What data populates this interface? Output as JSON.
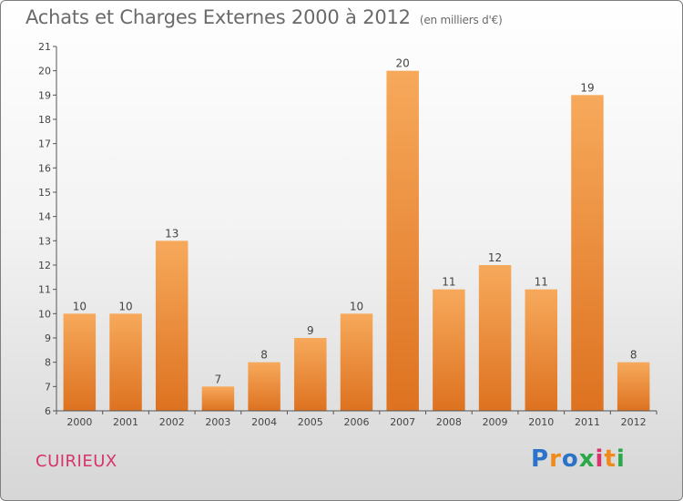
{
  "header": {
    "title": "Achats et Charges Externes 2000 à 2012",
    "subtitle": "(en milliers d'€)"
  },
  "footer": {
    "commune": "CUIRIEUX",
    "logo": "Proxiti",
    "logo_colors": [
      "#2a73c9",
      "#f08a1c",
      "#2a73c9",
      "#2aa84a",
      "#d6346a",
      "#f08a1c",
      "#2aa84a"
    ]
  },
  "colors": {
    "bar_light": "#f7a95b",
    "bar_dark": "#dd7220",
    "axis": "#555555",
    "title": "#6a6a6a",
    "commune": "#d6346a"
  },
  "chart_data": {
    "type": "bar",
    "title": "Achats et Charges Externes 2000 à 2012",
    "subtitle": "(en milliers d'€)",
    "categories": [
      "2000",
      "2001",
      "2002",
      "2003",
      "2004",
      "2005",
      "2006",
      "2007",
      "2008",
      "2009",
      "2010",
      "2011",
      "2012"
    ],
    "values": [
      10,
      10,
      13,
      7,
      8,
      9,
      10,
      20,
      11,
      12,
      11,
      19,
      8
    ],
    "ylim": [
      6,
      21
    ],
    "yticks": [
      6,
      7,
      8,
      9,
      10,
      11,
      12,
      13,
      14,
      15,
      16,
      17,
      18,
      19,
      20,
      21
    ],
    "grid": false,
    "legend": "none",
    "data_labels": true
  }
}
